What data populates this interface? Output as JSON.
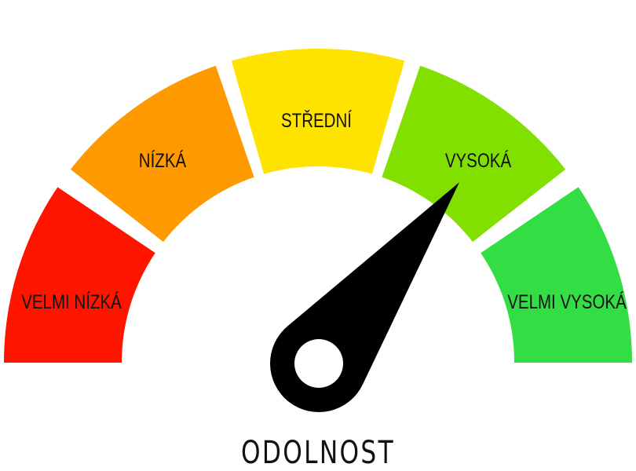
{
  "gauge": {
    "title": "ODOLNOST",
    "segments": [
      {
        "label": "VELMI NÍZKÁ",
        "color": "#ff1400"
      },
      {
        "label": "NÍZKÁ",
        "color": "#ff9900"
      },
      {
        "label": "STŘEDNÍ",
        "color": "#ffe300"
      },
      {
        "label": "VYSOKÁ",
        "color": "#82e000"
      },
      {
        "label": "VELMI VYSOKÁ",
        "color": "#33dd44"
      }
    ],
    "needle": {
      "value_fraction": 0.71,
      "color": "#000000"
    }
  }
}
